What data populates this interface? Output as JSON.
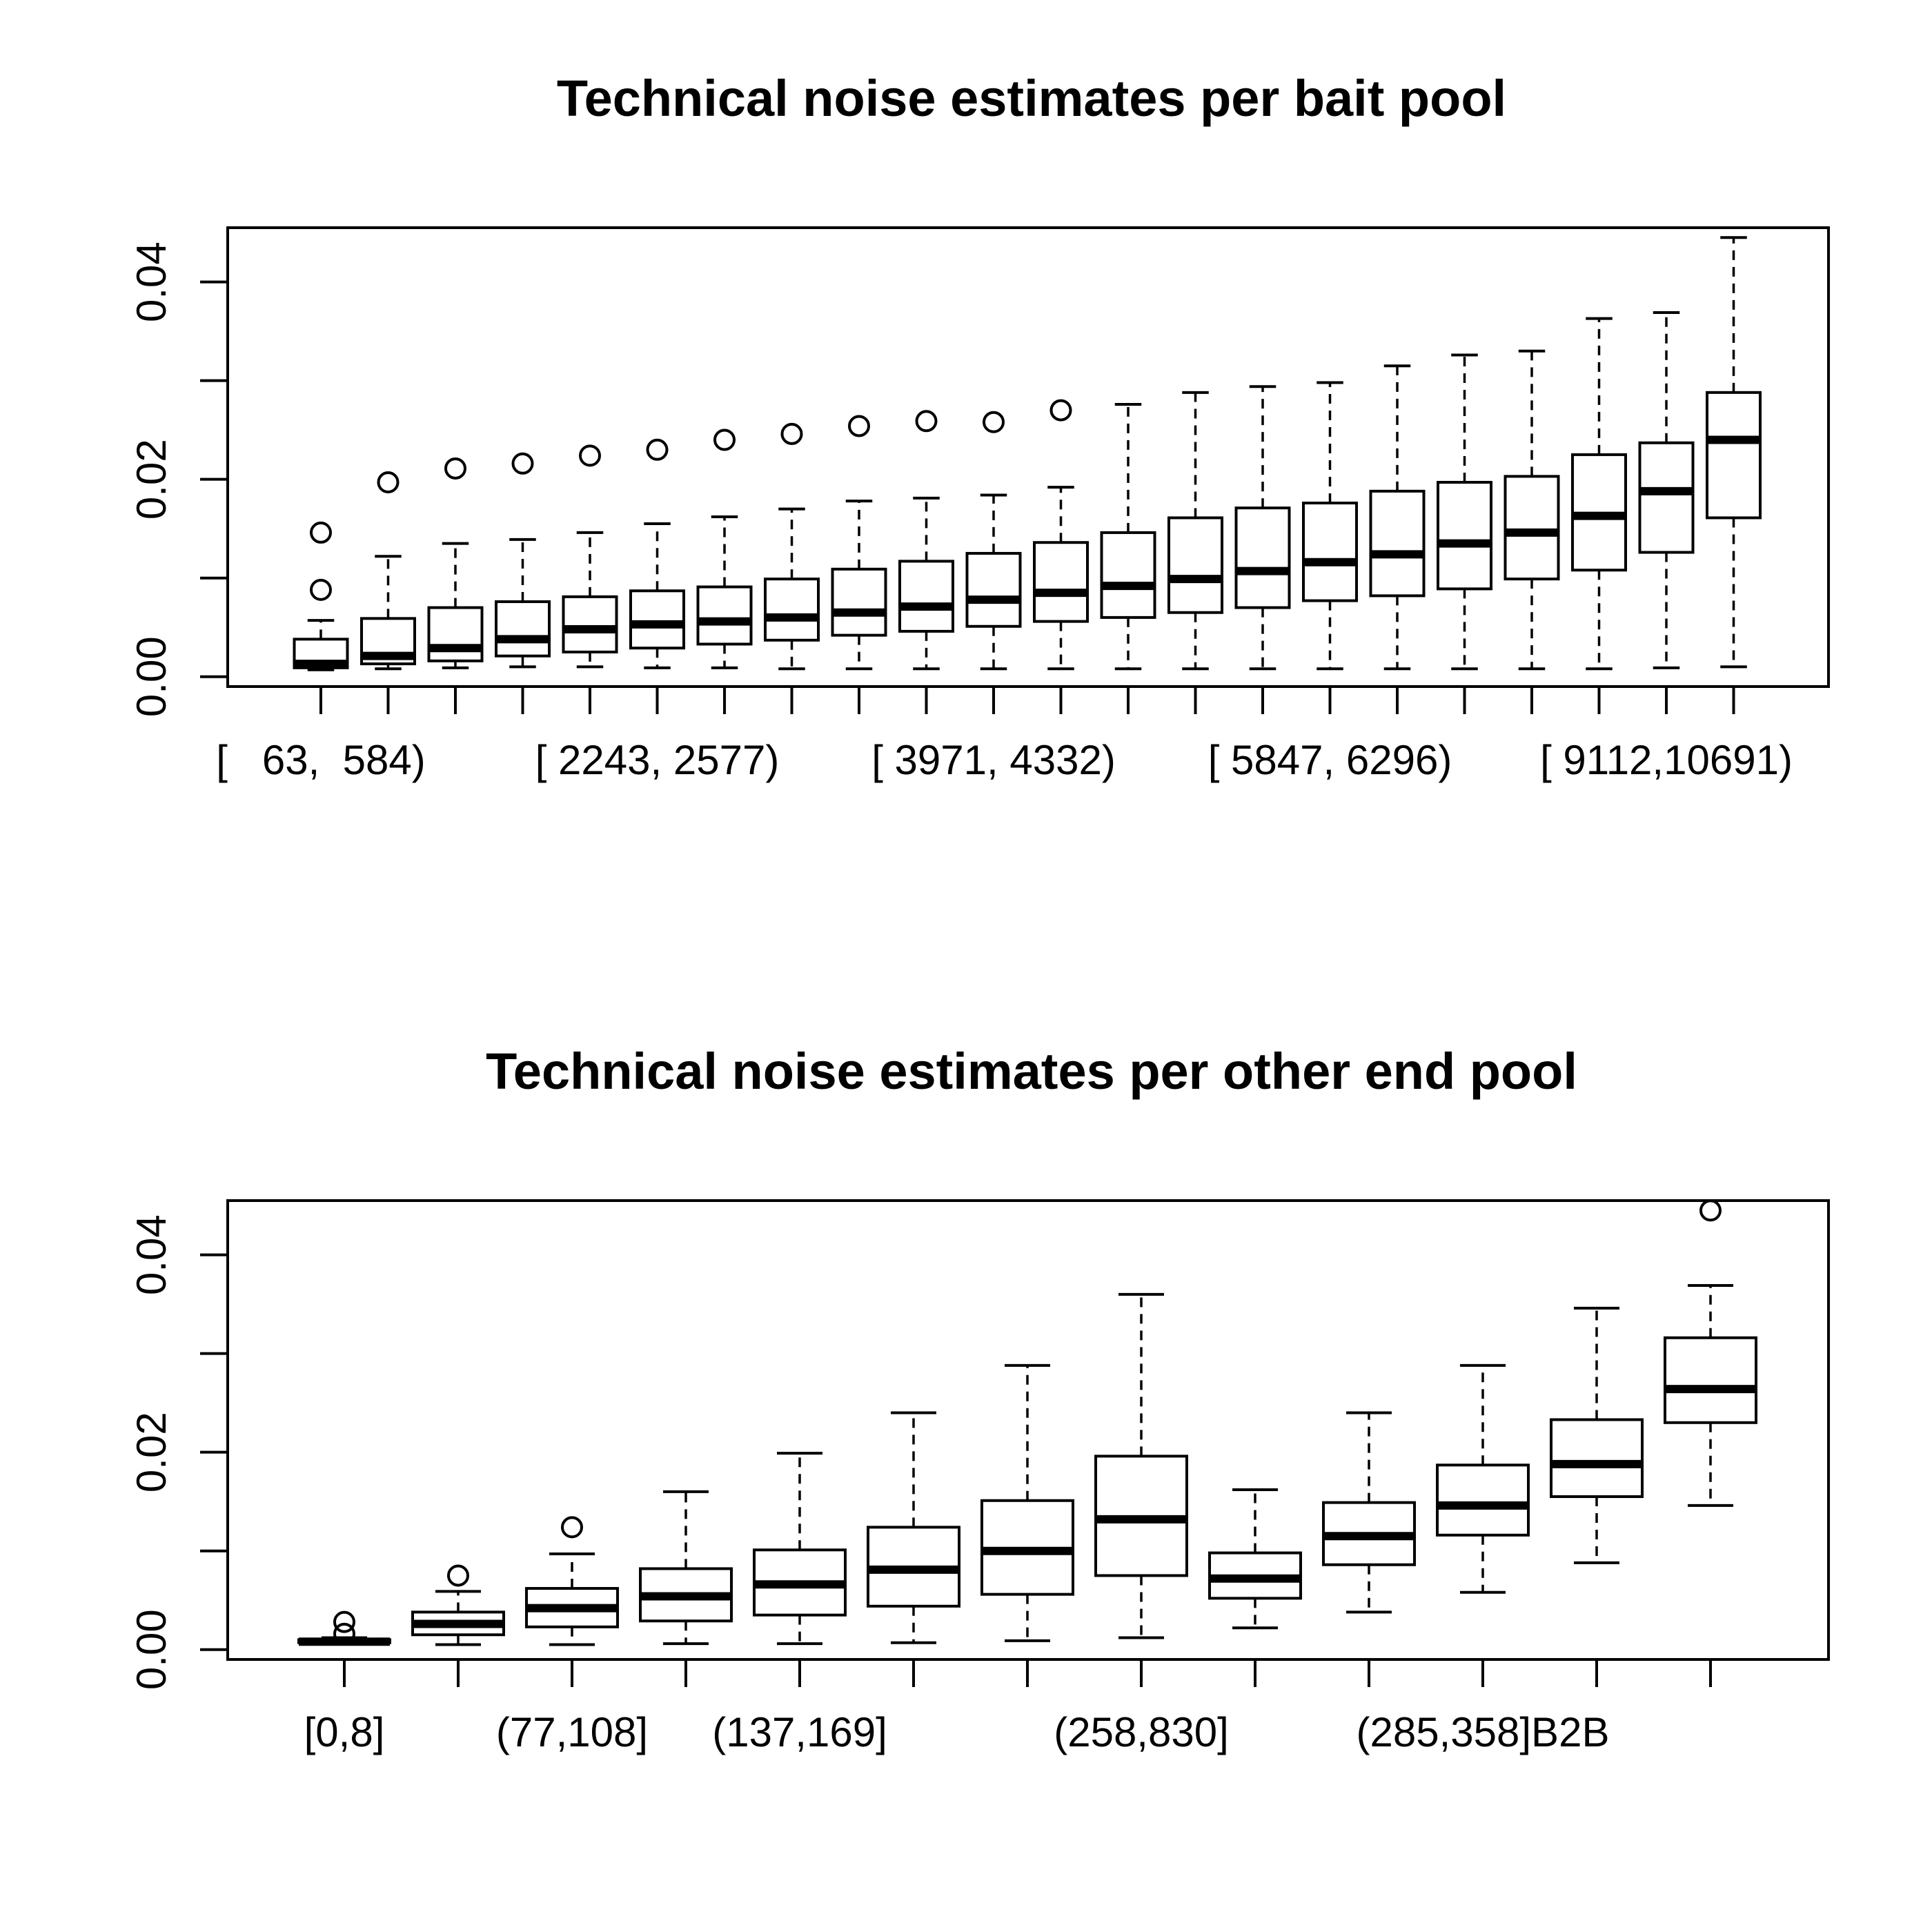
{
  "chart_data": [
    {
      "type": "boxplot",
      "title": "Technical noise estimates per bait pool",
      "xlabel": "",
      "ylabel": "",
      "ylim": [
        -0.001,
        0.0455
      ],
      "yticks": [
        0,
        0.01,
        0.02,
        0.03,
        0.04
      ],
      "ytick_labels": [
        "0.00",
        "",
        "0.02",
        "",
        "0.04"
      ],
      "grid": false,
      "xtick_labels": [
        {
          "index": 0,
          "text": "[   63,  584)"
        },
        {
          "index": 5,
          "text": "[ 2243, 2577)"
        },
        {
          "index": 10,
          "text": "[ 3971, 4332)"
        },
        {
          "index": 15,
          "text": "[ 5847, 6296)"
        },
        {
          "index": 20,
          "text": "[ 9112,10691)"
        }
      ],
      "boxes": [
        {
          "min": 0.0007,
          "q1": 0.0009,
          "median": 0.0013,
          "q3": 0.0038,
          "max": 0.0057,
          "outliers": [
            0.0088,
            0.0146
          ]
        },
        {
          "min": 0.0008,
          "q1": 0.0013,
          "median": 0.0021,
          "q3": 0.0059,
          "max": 0.0122,
          "outliers": [
            0.0197
          ]
        },
        {
          "min": 0.0009,
          "q1": 0.0016,
          "median": 0.0029,
          "q3": 0.007,
          "max": 0.0135,
          "outliers": [
            0.0211
          ]
        },
        {
          "min": 0.001,
          "q1": 0.0021,
          "median": 0.0038,
          "q3": 0.0076,
          "max": 0.0139,
          "outliers": [
            0.0216
          ]
        },
        {
          "min": 0.001,
          "q1": 0.0025,
          "median": 0.0048,
          "q3": 0.0081,
          "max": 0.0146,
          "outliers": [
            0.0224
          ]
        },
        {
          "min": 0.0009,
          "q1": 0.0029,
          "median": 0.0053,
          "q3": 0.0087,
          "max": 0.0155,
          "outliers": [
            0.023
          ]
        },
        {
          "min": 0.0009,
          "q1": 0.0033,
          "median": 0.0056,
          "q3": 0.0091,
          "max": 0.0162,
          "outliers": [
            0.024
          ]
        },
        {
          "min": 0.0008,
          "q1": 0.0037,
          "median": 0.006,
          "q3": 0.0099,
          "max": 0.017,
          "outliers": [
            0.0246
          ]
        },
        {
          "min": 0.0008,
          "q1": 0.0042,
          "median": 0.0065,
          "q3": 0.0109,
          "max": 0.0178,
          "outliers": [
            0.0254
          ]
        },
        {
          "min": 0.0008,
          "q1": 0.0046,
          "median": 0.0071,
          "q3": 0.0117,
          "max": 0.0181,
          "outliers": [
            0.0259
          ]
        },
        {
          "min": 0.0008,
          "q1": 0.0051,
          "median": 0.0078,
          "q3": 0.0125,
          "max": 0.0184,
          "outliers": [
            0.0258
          ]
        },
        {
          "min": 0.0008,
          "q1": 0.0056,
          "median": 0.0085,
          "q3": 0.0136,
          "max": 0.0192,
          "outliers": [
            0.027
          ]
        },
        {
          "min": 0.0008,
          "q1": 0.006,
          "median": 0.0092,
          "q3": 0.0146,
          "max": 0.0276,
          "outliers": []
        },
        {
          "min": 0.0008,
          "q1": 0.0065,
          "median": 0.0099,
          "q3": 0.0161,
          "max": 0.0288,
          "outliers": []
        },
        {
          "min": 0.0008,
          "q1": 0.007,
          "median": 0.0107,
          "q3": 0.0171,
          "max": 0.0294,
          "outliers": []
        },
        {
          "min": 0.0008,
          "q1": 0.0077,
          "median": 0.0116,
          "q3": 0.0176,
          "max": 0.0298,
          "outliers": []
        },
        {
          "min": 0.0008,
          "q1": 0.0082,
          "median": 0.0124,
          "q3": 0.0188,
          "max": 0.0315,
          "outliers": []
        },
        {
          "min": 0.0008,
          "q1": 0.0089,
          "median": 0.0135,
          "q3": 0.0197,
          "max": 0.0326,
          "outliers": []
        },
        {
          "min": 0.0008,
          "q1": 0.0099,
          "median": 0.0146,
          "q3": 0.0203,
          "max": 0.033,
          "outliers": []
        },
        {
          "min": 0.0008,
          "q1": 0.0108,
          "median": 0.0163,
          "q3": 0.0225,
          "max": 0.0363,
          "outliers": []
        },
        {
          "min": 0.0009,
          "q1": 0.0126,
          "median": 0.0188,
          "q3": 0.0237,
          "max": 0.0369,
          "outliers": []
        },
        {
          "min": 0.001,
          "q1": 0.0161,
          "median": 0.024,
          "q3": 0.0288,
          "max": 0.0445,
          "outliers": []
        }
      ]
    },
    {
      "type": "boxplot",
      "title": "Technical noise estimates per other end pool",
      "xlabel": "",
      "ylabel": "",
      "ylim": [
        -0.001,
        0.0455
      ],
      "yticks": [
        0,
        0.01,
        0.02,
        0.03,
        0.04
      ],
      "ytick_labels": [
        "0.00",
        "",
        "0.02",
        "",
        "0.04"
      ],
      "grid": false,
      "xtick_labels": [
        {
          "index": 0,
          "text": "[0,8]"
        },
        {
          "index": 2,
          "text": "(77,108]"
        },
        {
          "index": 4,
          "text": "(137,169]"
        },
        {
          "index": 7,
          "text": "(258,830]"
        },
        {
          "index": 10,
          "text": "(285,358]B2B"
        }
      ],
      "boxes": [
        {
          "min": 0.0006,
          "q1": 0.0007,
          "median": 0.0008,
          "q3": 0.001,
          "max": 0.0012,
          "outliers": [
            0.0016,
            0.0028
          ]
        },
        {
          "min": 0.0005,
          "q1": 0.0015,
          "median": 0.0026,
          "q3": 0.0038,
          "max": 0.0059,
          "outliers": [
            0.0075
          ]
        },
        {
          "min": 0.0005,
          "q1": 0.0023,
          "median": 0.0042,
          "q3": 0.0062,
          "max": 0.0097,
          "outliers": [
            0.0124
          ]
        },
        {
          "min": 0.0006,
          "q1": 0.0029,
          "median": 0.0054,
          "q3": 0.0082,
          "max": 0.016,
          "outliers": []
        },
        {
          "min": 0.0006,
          "q1": 0.0035,
          "median": 0.0066,
          "q3": 0.0101,
          "max": 0.0199,
          "outliers": []
        },
        {
          "min": 0.0007,
          "q1": 0.0044,
          "median": 0.0081,
          "q3": 0.0124,
          "max": 0.024,
          "outliers": []
        },
        {
          "min": 0.0009,
          "q1": 0.0056,
          "median": 0.01,
          "q3": 0.0151,
          "max": 0.0288,
          "outliers": []
        },
        {
          "min": 0.0012,
          "q1": 0.0075,
          "median": 0.0132,
          "q3": 0.0196,
          "max": 0.036,
          "outliers": []
        },
        {
          "min": 0.0022,
          "q1": 0.0052,
          "median": 0.0072,
          "q3": 0.0098,
          "max": 0.0162,
          "outliers": []
        },
        {
          "min": 0.0038,
          "q1": 0.0086,
          "median": 0.0115,
          "q3": 0.0149,
          "max": 0.024,
          "outliers": []
        },
        {
          "min": 0.0058,
          "q1": 0.0116,
          "median": 0.0146,
          "q3": 0.0187,
          "max": 0.0288,
          "outliers": []
        },
        {
          "min": 0.0088,
          "q1": 0.0155,
          "median": 0.0188,
          "q3": 0.0233,
          "max": 0.0346,
          "outliers": []
        },
        {
          "min": 0.0146,
          "q1": 0.023,
          "median": 0.0264,
          "q3": 0.0316,
          "max": 0.0369,
          "outliers": [
            0.0445
          ]
        }
      ]
    }
  ]
}
